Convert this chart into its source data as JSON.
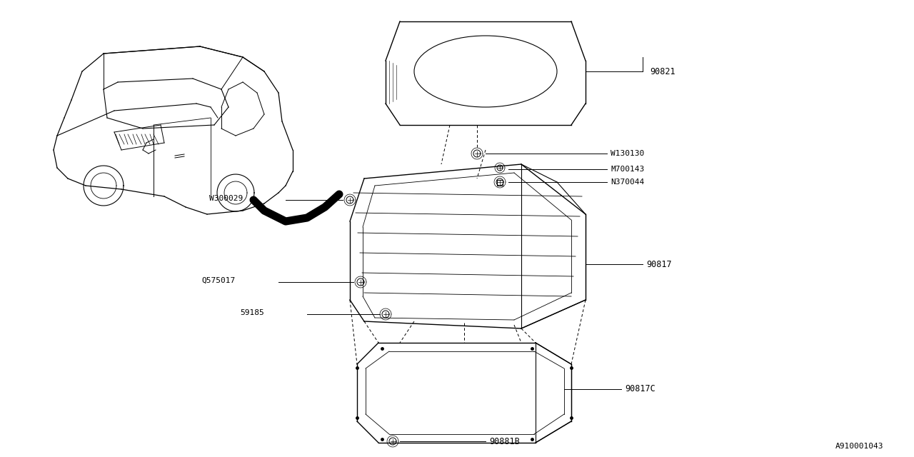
{
  "bg_color": "#ffffff",
  "line_color": "#000000",
  "fig_width": 12.8,
  "fig_height": 6.4,
  "diagram_id": "A910001043",
  "parts": [
    {
      "id": "90821",
      "label": "90821"
    },
    {
      "id": "W130130",
      "label": "W130130"
    },
    {
      "id": "M700143",
      "label": "M700143"
    },
    {
      "id": "N370044",
      "label": "N370044"
    },
    {
      "id": "90817",
      "label": "90817"
    },
    {
      "id": "W300029",
      "label": "W300029"
    },
    {
      "id": "Q575017",
      "label": "Q575017"
    },
    {
      "id": "59185",
      "label": "59185"
    },
    {
      "id": "90817C",
      "label": "90817C"
    },
    {
      "id": "90881B",
      "label": "90881B"
    }
  ]
}
